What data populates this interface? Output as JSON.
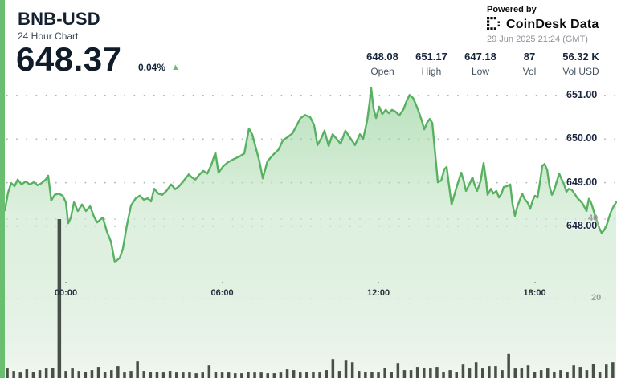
{
  "header": {
    "symbol": "BNB-USD",
    "subtitle": "24 Hour Chart",
    "price": "648.37",
    "change_pct": "0.04%",
    "up_arrow": "▲"
  },
  "attribution": {
    "powered_by": "Powered by",
    "brand": "CoinDesk Data",
    "timestamp": "29 Jun 2025 21:24 (GMT)"
  },
  "stats": [
    {
      "value": "648.08",
      "label": "Open"
    },
    {
      "value": "651.17",
      "label": "High"
    },
    {
      "value": "647.18",
      "label": "Low"
    },
    {
      "value": "87",
      "label": "Vol"
    },
    {
      "value": "56.32 K",
      "label": "Vol USD"
    }
  ],
  "colors": {
    "accent_green": "#69be70",
    "line_green": "#58b161",
    "volume_bar": "#474f48",
    "dark_navy": "#16253b",
    "timestamp_gray": "#8e939b"
  },
  "chart_data": {
    "type": "area",
    "title": "BNB-USD 24 Hour Chart",
    "x_axis": {
      "labels": [
        "00:00",
        "06:00",
        "12:00",
        "18:00"
      ],
      "label_hours": [
        0,
        6,
        12,
        18
      ],
      "unit": "time (GMT)"
    },
    "y_axis": {
      "labels": [
        "651.00",
        "650.00",
        "649.00",
        "648.00"
      ],
      "values": [
        651,
        650,
        649,
        648
      ],
      "unit": "USD",
      "range": [
        647.18,
        651.17
      ]
    },
    "volume_axis": {
      "labels": [
        "40",
        "20"
      ],
      "values": [
        40,
        20
      ]
    },
    "grid": "dotted",
    "series": [
      {
        "name": "BNB-USD price",
        "points": [
          [
            -2.53,
            648.29
          ],
          [
            -2.34,
            648.37
          ],
          [
            -2.22,
            648.77
          ],
          [
            -2.1,
            648.99
          ],
          [
            -1.97,
            648.92
          ],
          [
            -1.85,
            649.07
          ],
          [
            -1.7,
            648.96
          ],
          [
            -1.54,
            649.03
          ],
          [
            -1.39,
            648.96
          ],
          [
            -1.23,
            649.01
          ],
          [
            -1.08,
            648.94
          ],
          [
            -0.93,
            648.99
          ],
          [
            -0.77,
            649.07
          ],
          [
            -0.68,
            649.16
          ],
          [
            -0.56,
            648.59
          ],
          [
            -0.43,
            648.72
          ],
          [
            -0.28,
            648.75
          ],
          [
            -0.12,
            648.7
          ],
          [
            0.0,
            648.55
          ],
          [
            0.09,
            648.07
          ],
          [
            0.19,
            648.2
          ],
          [
            0.31,
            648.55
          ],
          [
            0.46,
            648.35
          ],
          [
            0.62,
            648.5
          ],
          [
            0.77,
            648.35
          ],
          [
            0.93,
            648.46
          ],
          [
            1.08,
            648.22
          ],
          [
            1.2,
            648.09
          ],
          [
            1.42,
            648.2
          ],
          [
            1.57,
            647.89
          ],
          [
            1.73,
            647.65
          ],
          [
            1.88,
            647.18
          ],
          [
            2.07,
            647.28
          ],
          [
            2.19,
            647.49
          ],
          [
            2.34,
            648.02
          ],
          [
            2.5,
            648.48
          ],
          [
            2.68,
            648.64
          ],
          [
            2.84,
            648.7
          ],
          [
            2.99,
            648.61
          ],
          [
            3.15,
            648.64
          ],
          [
            3.27,
            648.57
          ],
          [
            3.39,
            648.86
          ],
          [
            3.55,
            648.75
          ],
          [
            3.7,
            648.72
          ],
          [
            3.86,
            648.81
          ],
          [
            4.04,
            648.96
          ],
          [
            4.2,
            648.85
          ],
          [
            4.35,
            648.92
          ],
          [
            4.53,
            649.05
          ],
          [
            4.72,
            649.19
          ],
          [
            4.84,
            649.12
          ],
          [
            4.97,
            649.07
          ],
          [
            5.12,
            649.18
          ],
          [
            5.27,
            649.27
          ],
          [
            5.43,
            649.21
          ],
          [
            5.58,
            649.4
          ],
          [
            5.74,
            649.69
          ],
          [
            5.86,
            649.23
          ],
          [
            6.05,
            649.38
          ],
          [
            6.23,
            649.47
          ],
          [
            6.45,
            649.54
          ],
          [
            6.66,
            649.6
          ],
          [
            6.85,
            649.67
          ],
          [
            7.03,
            650.24
          ],
          [
            7.16,
            650.1
          ],
          [
            7.31,
            649.76
          ],
          [
            7.43,
            649.49
          ],
          [
            7.56,
            649.1
          ],
          [
            7.74,
            649.49
          ],
          [
            7.96,
            649.64
          ],
          [
            8.17,
            649.76
          ],
          [
            8.33,
            649.97
          ],
          [
            8.51,
            650.04
          ],
          [
            8.7,
            650.13
          ],
          [
            8.85,
            650.3
          ],
          [
            9.01,
            650.48
          ],
          [
            9.19,
            650.55
          ],
          [
            9.38,
            650.5
          ],
          [
            9.53,
            650.32
          ],
          [
            9.66,
            649.86
          ],
          [
            9.81,
            650.02
          ],
          [
            9.93,
            650.19
          ],
          [
            10.09,
            649.84
          ],
          [
            10.24,
            650.11
          ],
          [
            10.4,
            650.0
          ],
          [
            10.55,
            649.89
          ],
          [
            10.73,
            650.19
          ],
          [
            10.92,
            650.02
          ],
          [
            11.1,
            649.86
          ],
          [
            11.29,
            650.11
          ],
          [
            11.41,
            649.99
          ],
          [
            11.57,
            650.43
          ],
          [
            11.66,
            650.83
          ],
          [
            11.72,
            651.17
          ],
          [
            11.81,
            650.7
          ],
          [
            11.91,
            650.48
          ],
          [
            12.03,
            650.74
          ],
          [
            12.15,
            650.57
          ],
          [
            12.28,
            650.67
          ],
          [
            12.4,
            650.59
          ],
          [
            12.52,
            650.67
          ],
          [
            12.65,
            650.63
          ],
          [
            12.8,
            650.54
          ],
          [
            12.96,
            650.68
          ],
          [
            13.08,
            650.87
          ],
          [
            13.2,
            651.01
          ],
          [
            13.33,
            650.94
          ],
          [
            13.45,
            650.78
          ],
          [
            13.57,
            650.59
          ],
          [
            13.67,
            650.41
          ],
          [
            13.76,
            650.22
          ],
          [
            13.88,
            650.39
          ],
          [
            13.97,
            650.46
          ],
          [
            14.07,
            650.37
          ],
          [
            14.16,
            649.78
          ],
          [
            14.28,
            649.01
          ],
          [
            14.41,
            649.05
          ],
          [
            14.53,
            649.31
          ],
          [
            14.62,
            649.36
          ],
          [
            14.71,
            648.94
          ],
          [
            14.81,
            648.5
          ],
          [
            14.93,
            648.75
          ],
          [
            15.05,
            648.99
          ],
          [
            15.18,
            649.23
          ],
          [
            15.27,
            649.05
          ],
          [
            15.36,
            648.81
          ],
          [
            15.49,
            648.96
          ],
          [
            15.61,
            649.12
          ],
          [
            15.7,
            648.94
          ],
          [
            15.79,
            648.81
          ],
          [
            15.92,
            649.03
          ],
          [
            16.04,
            649.45
          ],
          [
            16.13,
            649.07
          ],
          [
            16.19,
            648.72
          ],
          [
            16.32,
            648.86
          ],
          [
            16.41,
            648.75
          ],
          [
            16.53,
            648.81
          ],
          [
            16.63,
            648.66
          ],
          [
            16.72,
            648.74
          ],
          [
            16.81,
            648.9
          ],
          [
            16.93,
            648.92
          ],
          [
            17.06,
            648.96
          ],
          [
            17.15,
            648.5
          ],
          [
            17.24,
            648.24
          ],
          [
            17.33,
            648.44
          ],
          [
            17.43,
            648.61
          ],
          [
            17.52,
            648.75
          ],
          [
            17.61,
            648.63
          ],
          [
            17.74,
            648.53
          ],
          [
            17.83,
            648.4
          ],
          [
            17.92,
            648.59
          ],
          [
            18.01,
            648.7
          ],
          [
            18.11,
            648.66
          ],
          [
            18.2,
            648.99
          ],
          [
            18.29,
            649.38
          ],
          [
            18.38,
            649.43
          ],
          [
            18.48,
            649.29
          ],
          [
            18.57,
            648.92
          ],
          [
            18.66,
            648.72
          ],
          [
            18.75,
            648.83
          ],
          [
            18.85,
            649.03
          ],
          [
            18.94,
            649.21
          ],
          [
            19.03,
            649.08
          ],
          [
            19.12,
            648.97
          ],
          [
            19.22,
            648.79
          ],
          [
            19.31,
            648.86
          ],
          [
            19.43,
            648.83
          ],
          [
            19.56,
            648.72
          ],
          [
            19.65,
            648.64
          ],
          [
            19.74,
            648.59
          ],
          [
            19.83,
            648.53
          ],
          [
            19.93,
            648.42
          ],
          [
            19.99,
            648.35
          ],
          [
            20.08,
            648.63
          ],
          [
            20.14,
            648.57
          ],
          [
            20.2,
            648.48
          ],
          [
            20.3,
            648.28
          ],
          [
            20.39,
            648.11
          ],
          [
            20.48,
            647.96
          ],
          [
            20.57,
            647.85
          ],
          [
            20.66,
            647.91
          ],
          [
            20.76,
            648.02
          ],
          [
            20.85,
            648.2
          ],
          [
            20.94,
            648.35
          ],
          [
            21.03,
            648.46
          ],
          [
            21.13,
            648.55
          ]
        ]
      }
    ],
    "volume": {
      "name": "Volume (15 min bars)",
      "t_start": -2.25,
      "t_step": 0.25,
      "values": [
        2.4,
        1.8,
        1.4,
        2.2,
        1.6,
        2.0,
        2.4,
        2.6,
        40,
        1.8,
        2.4,
        1.8,
        1.6,
        2.0,
        2.8,
        1.6,
        2.0,
        3.0,
        1.4,
        1.8,
        4.2,
        1.8,
        1.6,
        1.6,
        1.4,
        1.8,
        1.4,
        1.4,
        1.4,
        1.2,
        1.4,
        3.2,
        1.6,
        1.4,
        1.4,
        1.2,
        1.2,
        1.6,
        1.4,
        1.4,
        1.2,
        1.2,
        1.4,
        2.2,
        2.0,
        1.4,
        1.6,
        1.6,
        1.4,
        2.0,
        4.8,
        1.8,
        4.4,
        4.0,
        1.8,
        1.6,
        1.6,
        1.4,
        2.6,
        1.6,
        3.8,
        2.0,
        2.0,
        2.8,
        2.6,
        2.4,
        2.8,
        1.6,
        2.0,
        1.6,
        3.4,
        2.4,
        4.0,
        2.4,
        3.0,
        3.0,
        2.0,
        6.1,
        2.4,
        2.4,
        3.2,
        1.6,
        2.0,
        2.4,
        1.6,
        2.0,
        1.6,
        3.2,
        2.8,
        2.0,
        3.6,
        1.6,
        3.4,
        4.0
      ]
    }
  }
}
